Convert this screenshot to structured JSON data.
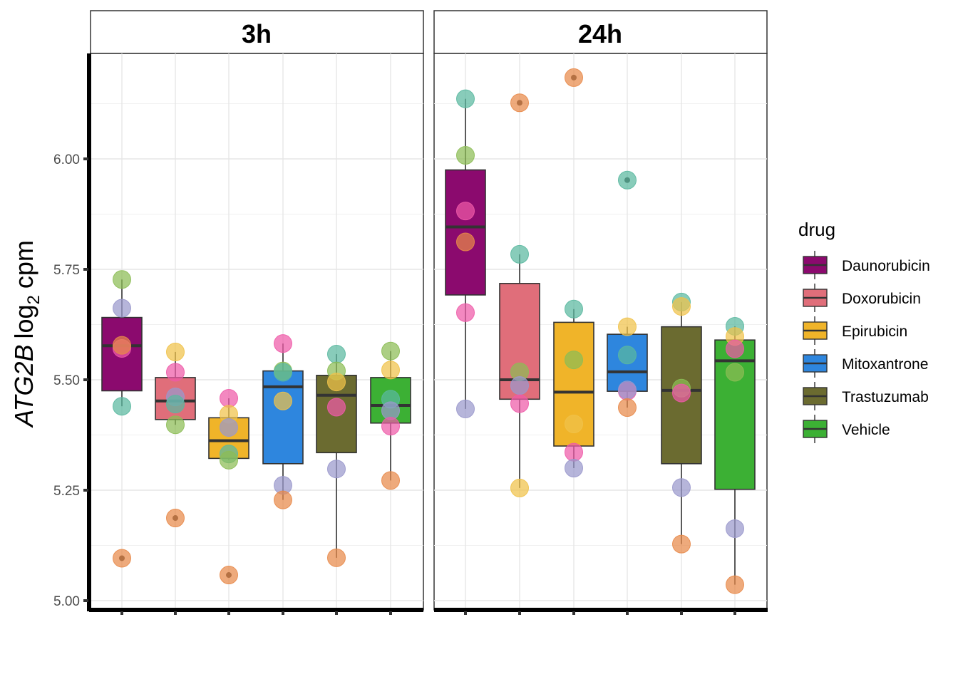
{
  "chart_data": {
    "type": "boxplot-faceted",
    "ylabel_gene": "ATG2B",
    "ylabel_log": "log",
    "ylabel_sub": "2",
    "ylabel_unit": "cpm",
    "ylim": [
      4.99,
      6.25
    ],
    "yticks": [
      5.0,
      5.25,
      5.5,
      5.75,
      6.0
    ],
    "ytick_labels": [
      "5.00",
      "5.25",
      "5.50",
      "5.75",
      "6.00"
    ],
    "legend": {
      "title": "drug",
      "entries": [
        {
          "name": "Daunorubicin",
          "color": "#8b0a6e"
        },
        {
          "name": "Doxorubicin",
          "color": "#e06e7a"
        },
        {
          "name": "Epirubicin",
          "color": "#f0b429"
        },
        {
          "name": "Mitoxantrone",
          "color": "#2e86de"
        },
        {
          "name": "Trastuzumab",
          "color": "#6b6b30"
        },
        {
          "name": "Vehicle",
          "color": "#3cb034"
        }
      ]
    },
    "point_colors": {
      "orange": "#e8894a",
      "teal": "#5ab8a0",
      "green": "#8cbd55",
      "lavender": "#9a98cc",
      "pink": "#ee5aa8",
      "yellow": "#f0c24a"
    },
    "facets": [
      {
        "label": "3h",
        "boxes": [
          {
            "drug": "Daunorubicin",
            "q1": 5.475,
            "median": 5.577,
            "q3": 5.641,
            "whisker_low": 5.44,
            "whisker_high": 5.727,
            "outliers": [
              5.096
            ]
          },
          {
            "drug": "Doxorubicin",
            "q1": 5.41,
            "median": 5.452,
            "q3": 5.505,
            "whisker_low": 5.398,
            "whisker_high": 5.563,
            "outliers": [
              5.187
            ]
          },
          {
            "drug": "Epirubicin",
            "q1": 5.322,
            "median": 5.362,
            "q3": 5.414,
            "whisker_low": 5.318,
            "whisker_high": 5.458,
            "outliers": [
              5.058
            ]
          },
          {
            "drug": "Mitoxantrone",
            "q1": 5.31,
            "median": 5.484,
            "q3": 5.52,
            "whisker_low": 5.228,
            "whisker_high": 5.582,
            "outliers": []
          },
          {
            "drug": "Trastuzumab",
            "q1": 5.335,
            "median": 5.465,
            "q3": 5.51,
            "whisker_low": 5.097,
            "whisker_high": 5.558,
            "outliers": []
          },
          {
            "drug": "Vehicle",
            "q1": 5.402,
            "median": 5.442,
            "q3": 5.505,
            "whisker_low": 5.272,
            "whisker_high": 5.565,
            "outliers": []
          }
        ],
        "points": [
          [
            [
              "green",
              5.727
            ],
            [
              "lavender",
              5.662
            ],
            [
              "pink",
              5.571
            ],
            [
              "orange",
              5.578
            ],
            [
              "teal",
              5.44
            ],
            [
              "orange",
              5.096
            ]
          ],
          [
            [
              "yellow",
              5.563
            ],
            [
              "pink",
              5.517
            ],
            [
              "lavender",
              5.461
            ],
            [
              "teal",
              5.445
            ],
            [
              "green",
              5.398
            ],
            [
              "orange",
              5.187
            ]
          ],
          [
            [
              "pink",
              5.458
            ],
            [
              "yellow",
              5.422
            ],
            [
              "lavender",
              5.392
            ],
            [
              "teal",
              5.332
            ],
            [
              "green",
              5.318
            ],
            [
              "orange",
              5.058
            ]
          ],
          [
            [
              "pink",
              5.582
            ],
            [
              "green",
              5.52
            ],
            [
              "teal",
              5.517
            ],
            [
              "yellow",
              5.452
            ],
            [
              "lavender",
              5.261
            ],
            [
              "orange",
              5.228
            ]
          ],
          [
            [
              "teal",
              5.558
            ],
            [
              "green",
              5.52
            ],
            [
              "yellow",
              5.495
            ],
            [
              "pink",
              5.438
            ],
            [
              "lavender",
              5.298
            ],
            [
              "orange",
              5.097
            ]
          ],
          [
            [
              "green",
              5.565
            ],
            [
              "yellow",
              5.522
            ],
            [
              "teal",
              5.456
            ],
            [
              "lavender",
              5.43
            ],
            [
              "pink",
              5.395
            ],
            [
              "orange",
              5.272
            ]
          ]
        ]
      },
      {
        "label": "24h",
        "boxes": [
          {
            "drug": "Daunorubicin",
            "q1": 5.692,
            "median": 5.846,
            "q3": 5.975,
            "whisker_low": 5.434,
            "whisker_high": 6.136,
            "outliers": []
          },
          {
            "drug": "Doxorubicin",
            "q1": 5.456,
            "median": 5.5,
            "q3": 5.718,
            "whisker_low": 5.255,
            "whisker_high": 5.784,
            "outliers": [
              6.127
            ]
          },
          {
            "drug": "Epirubicin",
            "q1": 5.35,
            "median": 5.472,
            "q3": 5.63,
            "whisker_low": 5.3,
            "whisker_high": 5.66,
            "outliers": [
              6.184
            ]
          },
          {
            "drug": "Mitoxantrone",
            "q1": 5.474,
            "median": 5.518,
            "q3": 5.603,
            "whisker_low": 5.437,
            "whisker_high": 5.62,
            "outliers": [
              5.952
            ]
          },
          {
            "drug": "Trastuzumab",
            "q1": 5.31,
            "median": 5.476,
            "q3": 5.62,
            "whisker_low": 5.128,
            "whisker_high": 5.676,
            "outliers": []
          },
          {
            "drug": "Vehicle",
            "q1": 5.252,
            "median": 5.543,
            "q3": 5.59,
            "whisker_low": 5.036,
            "whisker_high": 5.621,
            "outliers": []
          }
        ],
        "points": [
          [
            [
              "teal",
              6.136
            ],
            [
              "green",
              6.008
            ],
            [
              "pink",
              5.882
            ],
            [
              "orange",
              5.812
            ],
            [
              "pink",
              5.652
            ],
            [
              "lavender",
              5.434
            ]
          ],
          [
            [
              "orange",
              6.127
            ],
            [
              "teal",
              5.784
            ],
            [
              "green",
              5.518
            ],
            [
              "lavender",
              5.487
            ],
            [
              "pink",
              5.446
            ],
            [
              "yellow",
              5.255
            ]
          ],
          [
            [
              "orange",
              6.184
            ],
            [
              "teal",
              5.66
            ],
            [
              "green",
              5.545
            ],
            [
              "yellow",
              5.4
            ],
            [
              "pink",
              5.336
            ],
            [
              "lavender",
              5.3
            ]
          ],
          [
            [
              "teal",
              5.952
            ],
            [
              "yellow",
              5.62
            ],
            [
              "teal",
              5.556
            ],
            [
              "pink",
              5.474
            ],
            [
              "lavender",
              5.477
            ],
            [
              "orange",
              5.437
            ]
          ],
          [
            [
              "teal",
              5.676
            ],
            [
              "yellow",
              5.666
            ],
            [
              "green",
              5.481
            ],
            [
              "pink",
              5.47
            ],
            [
              "lavender",
              5.256
            ],
            [
              "orange",
              5.128
            ]
          ],
          [
            [
              "teal",
              5.621
            ],
            [
              "yellow",
              5.598
            ],
            [
              "pink",
              5.57
            ],
            [
              "green",
              5.517
            ],
            [
              "lavender",
              5.163
            ],
            [
              "orange",
              5.036
            ]
          ]
        ]
      }
    ]
  }
}
